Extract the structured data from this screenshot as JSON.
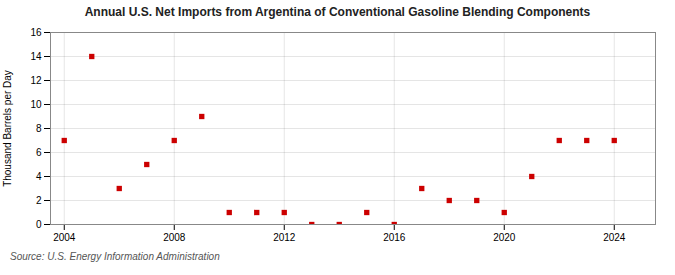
{
  "chart_data": {
    "type": "scatter",
    "title": "Annual U.S. Net Imports from Argentina of Conventional Gasoline Blending Components",
    "ylabel": "Thousand Barrels per Day",
    "annotations": [
      "Source: U.S. Energy Information Administration"
    ],
    "x": [
      2004,
      2005,
      2006,
      2007,
      2008,
      2009,
      2010,
      2011,
      2012,
      2013,
      2014,
      2015,
      2016,
      2017,
      2018,
      2019,
      2020,
      2021,
      2022,
      2023,
      2024
    ],
    "values": [
      7,
      14,
      3,
      5,
      7,
      9,
      1,
      1,
      1,
      0,
      0,
      1,
      0,
      3,
      2,
      2,
      1,
      4,
      7,
      7,
      7
    ],
    "color": "#cc0000",
    "marker": "square",
    "xlim": [
      2003.5,
      2025.5
    ],
    "xticks": [
      2004,
      2008,
      2012,
      2016,
      2020,
      2024
    ],
    "ylim": [
      0,
      16
    ],
    "yticks": [
      0,
      2,
      4,
      6,
      8,
      10,
      12,
      14,
      16
    ],
    "grid": true
  }
}
